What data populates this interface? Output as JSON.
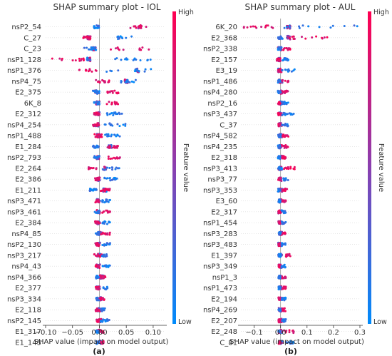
{
  "chart_data": [
    {
      "type": "scatter",
      "subtype": "shap_beeswarm",
      "title": "SHAP summary plot - IOL",
      "xlabel": "SHAP value (impact on model output)",
      "panel_label": "(a)",
      "xlim": [
        -0.1,
        0.12
      ],
      "xticks": [
        -0.1,
        -0.05,
        0.0,
        0.05,
        0.1
      ],
      "xtick_labels": [
        "−0.10",
        "−0.05",
        "0.00",
        "0.05",
        "0.10"
      ],
      "features": [
        {
          "name": "nsP2_54",
          "min": 0.05,
          "max": 0.09,
          "lowmin": -0.01,
          "lowmax": 0.0,
          "dense": 0.075
        },
        {
          "name": "C_27",
          "min": -0.03,
          "max": -0.015,
          "lowmin": 0.03,
          "lowmax": 0.06,
          "dense": -0.02
        },
        {
          "name": "C_23",
          "min": 0.02,
          "max": 0.1,
          "lowmin": -0.03,
          "lowmax": -0.005,
          "dense": -0.01
        },
        {
          "name": "nsP1_128",
          "min": -0.09,
          "max": -0.02,
          "lowmin": 0.02,
          "lowmax": 0.1,
          "dense": -0.02
        },
        {
          "name": "nsP1_376",
          "min": -0.04,
          "max": -0.005,
          "lowmin": 0.01,
          "lowmax": 0.1,
          "dense": 0.07
        },
        {
          "name": "nsP4_75",
          "min": -0.01,
          "max": 0.02,
          "lowmin": 0.04,
          "lowmax": 0.07,
          "dense": 0.05
        },
        {
          "name": "E2_375",
          "min": 0.015,
          "max": 0.04,
          "lowmin": -0.012,
          "lowmax": 0.0,
          "dense": -0.005
        },
        {
          "name": "6K_8",
          "min": 0.01,
          "max": 0.04,
          "lowmin": -0.01,
          "lowmax": 0.0,
          "dense": -0.003
        },
        {
          "name": "E2_312",
          "min": -0.01,
          "max": 0.0,
          "lowmin": 0.01,
          "lowmax": 0.045,
          "dense": -0.003
        },
        {
          "name": "nsP4_254",
          "min": -0.012,
          "max": 0.0,
          "lowmin": 0.01,
          "lowmax": 0.05,
          "dense": -0.004
        },
        {
          "name": "nsP1_488",
          "min": -0.01,
          "max": 0.005,
          "lowmin": 0.01,
          "lowmax": 0.04,
          "dense": -0.002
        },
        {
          "name": "E1_284",
          "min": 0.015,
          "max": 0.035,
          "lowmin": -0.012,
          "lowmax": 0.0,
          "dense": 0.02
        },
        {
          "name": "nsP2_793",
          "min": 0.015,
          "max": 0.04,
          "lowmin": -0.01,
          "lowmax": 0.0,
          "dense": -0.003
        },
        {
          "name": "E2_264",
          "min": -0.02,
          "max": -0.005,
          "lowmin": 0.005,
          "lowmax": 0.04,
          "dense": 0.01
        },
        {
          "name": "E2_386",
          "min": -0.008,
          "max": 0.0,
          "lowmin": 0.005,
          "lowmax": 0.035,
          "dense": -0.002
        },
        {
          "name": "E1_211",
          "min": 0.0,
          "max": 0.02,
          "lowmin": -0.02,
          "lowmax": -0.005,
          "dense": 0.01
        },
        {
          "name": "nsP3_471",
          "min": -0.008,
          "max": 0.0,
          "lowmin": 0.005,
          "lowmax": 0.02,
          "dense": -0.002
        },
        {
          "name": "nsP3_461",
          "min": 0.005,
          "max": 0.02,
          "lowmin": -0.01,
          "lowmax": 0.0,
          "dense": -0.002
        },
        {
          "name": "E2_384",
          "min": -0.008,
          "max": 0.0,
          "lowmin": 0.005,
          "lowmax": 0.02,
          "dense": -0.002
        },
        {
          "name": "nsP4_85",
          "min": 0.003,
          "max": 0.02,
          "lowmin": -0.008,
          "lowmax": 0.0,
          "dense": 0.0
        },
        {
          "name": "nsP2_130",
          "min": -0.008,
          "max": 0.0,
          "lowmin": 0.005,
          "lowmax": 0.02,
          "dense": -0.002
        },
        {
          "name": "nsP3_217",
          "min": -0.01,
          "max": 0.005,
          "lowmin": 0.005,
          "lowmax": 0.015,
          "dense": 0.0
        },
        {
          "name": "nsP4_43",
          "min": -0.008,
          "max": 0.0,
          "lowmin": 0.005,
          "lowmax": 0.02,
          "dense": -0.002
        },
        {
          "name": "nsP4_366",
          "min": 0.0,
          "max": 0.012,
          "lowmin": -0.008,
          "lowmax": 0.0,
          "dense": 0.004
        },
        {
          "name": "E2_377",
          "min": -0.008,
          "max": 0.0,
          "lowmin": 0.003,
          "lowmax": 0.015,
          "dense": -0.002
        },
        {
          "name": "nsP3_334",
          "min": 0.0,
          "max": 0.01,
          "lowmin": -0.008,
          "lowmax": 0.0,
          "dense": 0.002
        },
        {
          "name": "E2_118",
          "min": -0.008,
          "max": 0.0,
          "lowmin": 0.002,
          "lowmax": 0.012,
          "dense": -0.002
        },
        {
          "name": "nsP2_145",
          "min": -0.006,
          "max": 0.0,
          "lowmin": 0.002,
          "lowmax": 0.02,
          "dense": 0.0
        },
        {
          "name": "E1_317",
          "min": 0.0,
          "max": 0.008,
          "lowmin": -0.008,
          "lowmax": 0.0,
          "dense": 0.0
        },
        {
          "name": "E1_145",
          "min": 0.0,
          "max": 0.008,
          "lowmin": -0.006,
          "lowmax": 0.0,
          "dense": 0.0
        }
      ],
      "colorbar": {
        "label": "Feature value",
        "high": "High",
        "low": "Low",
        "high_color": "#ff0051",
        "low_color": "#008bfb"
      }
    },
    {
      "type": "scatter",
      "subtype": "shap_beeswarm",
      "title": "SHAP summary plot - AUL",
      "xlabel": "SHAP value (impact on model output)",
      "panel_label": "(b)",
      "xlim": [
        -0.15,
        0.3
      ],
      "xticks": [
        -0.1,
        0.0,
        0.1,
        0.2,
        0.3
      ],
      "xtick_labels": [
        "−0.1",
        "0.0",
        "0.1",
        "0.2",
        "0.3"
      ],
      "features": [
        {
          "name": "6K_20",
          "min": -0.14,
          "max": -0.02,
          "lowmin": 0.0,
          "lowmax": 0.29,
          "dense": 0.03
        },
        {
          "name": "E2_368",
          "min": 0.02,
          "max": 0.19,
          "lowmin": -0.01,
          "lowmax": 0.01,
          "dense": 0.03
        },
        {
          "name": "nsP2_338",
          "min": 0.01,
          "max": 0.04,
          "lowmin": -0.01,
          "lowmax": 0.0,
          "dense": -0.003
        },
        {
          "name": "E2_157",
          "min": -0.015,
          "max": 0.0,
          "lowmin": 0.005,
          "lowmax": 0.03,
          "dense": -0.005
        },
        {
          "name": "E3_19",
          "min": -0.01,
          "max": 0.0,
          "lowmin": 0.005,
          "lowmax": 0.06,
          "dense": -0.003
        },
        {
          "name": "nsP1_486",
          "min": 0.005,
          "max": 0.03,
          "lowmin": -0.01,
          "lowmax": 0.0,
          "dense": 0.0
        },
        {
          "name": "nsP4_280",
          "min": 0.005,
          "max": 0.03,
          "lowmin": -0.01,
          "lowmax": 0.0,
          "dense": 0.0
        },
        {
          "name": "nsP2_16",
          "min": -0.01,
          "max": 0.0,
          "lowmin": 0.005,
          "lowmax": 0.03,
          "dense": -0.002
        },
        {
          "name": "nsP3_437",
          "min": -0.01,
          "max": 0.0,
          "lowmin": 0.005,
          "lowmax": 0.05,
          "dense": -0.002
        },
        {
          "name": "C_37",
          "min": -0.01,
          "max": 0.0,
          "lowmin": 0.005,
          "lowmax": 0.03,
          "dense": -0.002
        },
        {
          "name": "nsP4_582",
          "min": 0.005,
          "max": 0.03,
          "lowmin": -0.01,
          "lowmax": 0.0,
          "dense": 0.0
        },
        {
          "name": "nsP4_235",
          "min": 0.005,
          "max": 0.03,
          "lowmin": -0.01,
          "lowmax": 0.0,
          "dense": 0.0
        },
        {
          "name": "E2_318",
          "min": 0.005,
          "max": 0.02,
          "lowmin": -0.01,
          "lowmax": 0.0,
          "dense": 0.0
        },
        {
          "name": "nsP3_413",
          "min": -0.01,
          "max": 0.06,
          "lowmin": -0.01,
          "lowmax": 0.005,
          "dense": 0.0
        },
        {
          "name": "nsP3_77",
          "min": -0.01,
          "max": 0.0,
          "lowmin": 0.005,
          "lowmax": 0.03,
          "dense": -0.002
        },
        {
          "name": "nsP3_353",
          "min": 0.005,
          "max": 0.025,
          "lowmin": -0.01,
          "lowmax": 0.0,
          "dense": 0.0
        },
        {
          "name": "E3_60",
          "min": 0.005,
          "max": 0.02,
          "lowmin": -0.008,
          "lowmax": 0.0,
          "dense": 0.0
        },
        {
          "name": "E2_317",
          "min": -0.008,
          "max": 0.0,
          "lowmin": 0.003,
          "lowmax": 0.02,
          "dense": -0.002
        },
        {
          "name": "nsP1_454",
          "min": -0.008,
          "max": 0.0,
          "lowmin": 0.003,
          "lowmax": 0.02,
          "dense": -0.002
        },
        {
          "name": "nsP3_283",
          "min": 0.003,
          "max": 0.02,
          "lowmin": -0.008,
          "lowmax": 0.0,
          "dense": 0.0
        },
        {
          "name": "nsP3_483",
          "min": -0.008,
          "max": 0.0,
          "lowmin": 0.003,
          "lowmax": 0.02,
          "dense": -0.002
        },
        {
          "name": "E1_397",
          "min": 0.02,
          "max": 0.04,
          "lowmin": -0.008,
          "lowmax": 0.0,
          "dense": -0.002
        },
        {
          "name": "nsP3_349",
          "min": -0.008,
          "max": 0.0,
          "lowmin": 0.003,
          "lowmax": 0.02,
          "dense": -0.002
        },
        {
          "name": "nsP1_3",
          "min": 0.003,
          "max": 0.02,
          "lowmin": -0.008,
          "lowmax": 0.0,
          "dense": 0.0
        },
        {
          "name": "nsP1_473",
          "min": 0.003,
          "max": 0.02,
          "lowmin": -0.008,
          "lowmax": 0.0,
          "dense": 0.0
        },
        {
          "name": "E2_194",
          "min": -0.008,
          "max": 0.0,
          "lowmin": 0.003,
          "lowmax": 0.02,
          "dense": -0.002
        },
        {
          "name": "nsP4_269",
          "min": 0.003,
          "max": 0.02,
          "lowmin": -0.008,
          "lowmax": 0.0,
          "dense": 0.0
        },
        {
          "name": "E2_207",
          "min": -0.008,
          "max": 0.0,
          "lowmin": 0.003,
          "lowmax": 0.02,
          "dense": -0.002
        },
        {
          "name": "E2_248",
          "min": 0.01,
          "max": 0.05,
          "lowmin": -0.008,
          "lowmax": 0.0,
          "dense": 0.0
        },
        {
          "name": "C_81",
          "min": -0.006,
          "max": 0.0,
          "lowmin": 0.02,
          "lowmax": 0.05,
          "dense": 0.0
        }
      ],
      "colorbar": {
        "label": "Feature value",
        "high": "High",
        "low": "Low",
        "high_color": "#ff0051",
        "low_color": "#008bfb"
      }
    }
  ]
}
